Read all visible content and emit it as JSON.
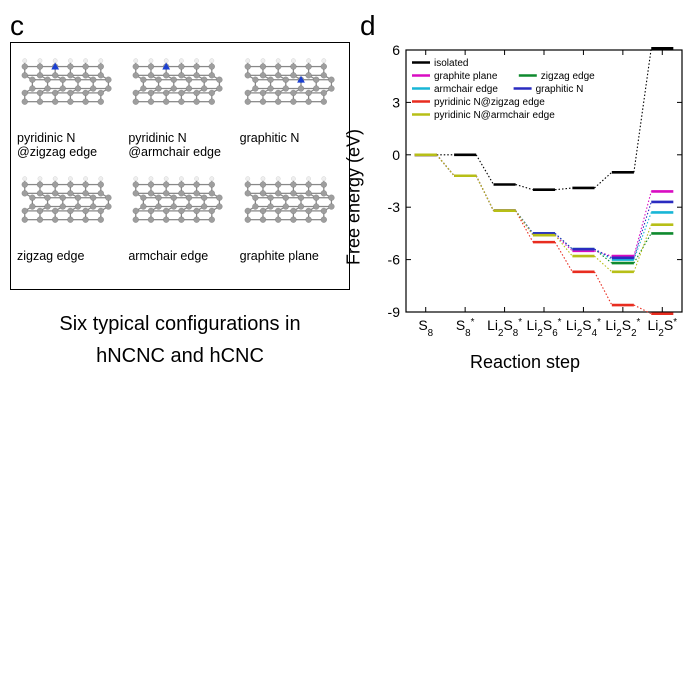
{
  "panel_c": {
    "label": "c",
    "schematics": [
      {
        "caption": "pyridinic N @zigzag edge",
        "n_atom": true,
        "n_pos": "top"
      },
      {
        "caption": "pyridinic N @armchair edge",
        "n_atom": true,
        "n_pos": "top"
      },
      {
        "caption": "graphitic N",
        "n_atom": true,
        "n_pos": "mid"
      },
      {
        "caption": "zigzag edge",
        "n_atom": false
      },
      {
        "caption": "armchair edge",
        "n_atom": false
      },
      {
        "caption": "graphite plane",
        "n_atom": false
      }
    ],
    "atom_color": "#9e9e9e",
    "h_color": "#efefef",
    "n_color": "#1a3fd1",
    "bond_color": "#888888",
    "subtitle_line1": "Six typical configurations in",
    "subtitle_line2": "hNCNC and hCNC"
  },
  "panel_d": {
    "label": "d",
    "chart": {
      "type": "step-line",
      "ylabel": "Free energy (eV)",
      "xlabel": "Reaction step",
      "ylim": [
        -9,
        6
      ],
      "ytick_step": 3,
      "yticks": [
        -9,
        -6,
        -3,
        0,
        3,
        6
      ],
      "xticks": [
        "S₈",
        "S₈*",
        "Li₂S₈*",
        "Li₂S₆*",
        "Li₂S₄*",
        "Li₂S₂*",
        "Li₂S*"
      ],
      "background_color": "#ffffff",
      "axis_color": "#000000",
      "tick_fontsize": 14,
      "label_fontsize": 18,
      "legend_fontsize": 10,
      "dash": "1.5,2",
      "plateau_halfwidth": 0.28,
      "series": [
        {
          "name": "isolated",
          "color": "#000000",
          "values": [
            0.0,
            0.0,
            -1.7,
            -2.0,
            -1.9,
            -1.0,
            6.1
          ]
        },
        {
          "name": "graphite plane",
          "color": "#d90cc2",
          "values": [
            0.0,
            -1.2,
            -3.2,
            -4.6,
            -5.5,
            -5.8,
            -2.1
          ]
        },
        {
          "name": "zigzag edge",
          "color": "#0f8a2e",
          "values": [
            0.0,
            -1.2,
            -3.2,
            -4.5,
            -5.4,
            -6.2,
            -4.5
          ]
        },
        {
          "name": "armchair edge",
          "color": "#18b6d6",
          "values": [
            0.0,
            -1.2,
            -3.2,
            -4.5,
            -5.4,
            -6.0,
            -3.3
          ]
        },
        {
          "name": "graphitic N",
          "color": "#2a2bc0",
          "values": [
            0.0,
            -1.2,
            -3.2,
            -4.5,
            -5.4,
            -5.9,
            -2.7
          ]
        },
        {
          "name": "pyridinic N@zigzag edge",
          "color": "#e82c1f",
          "values": [
            0.0,
            -1.2,
            -3.2,
            -5.0,
            -6.7,
            -8.6,
            -9.1
          ]
        },
        {
          "name": "pyridinic N@armchair edge",
          "color": "#b7bf17",
          "values": [
            0.0,
            -1.2,
            -3.2,
            -4.6,
            -5.8,
            -6.7,
            -4.0
          ]
        }
      ],
      "legend_layout": [
        [
          "isolated"
        ],
        [
          "graphite plane",
          "zigzag edge"
        ],
        [
          "armchair edge",
          "graphitic N"
        ],
        [
          "pyridinic N@zigzag edge"
        ],
        [
          "pyridinic N@armchair edge"
        ]
      ]
    }
  }
}
